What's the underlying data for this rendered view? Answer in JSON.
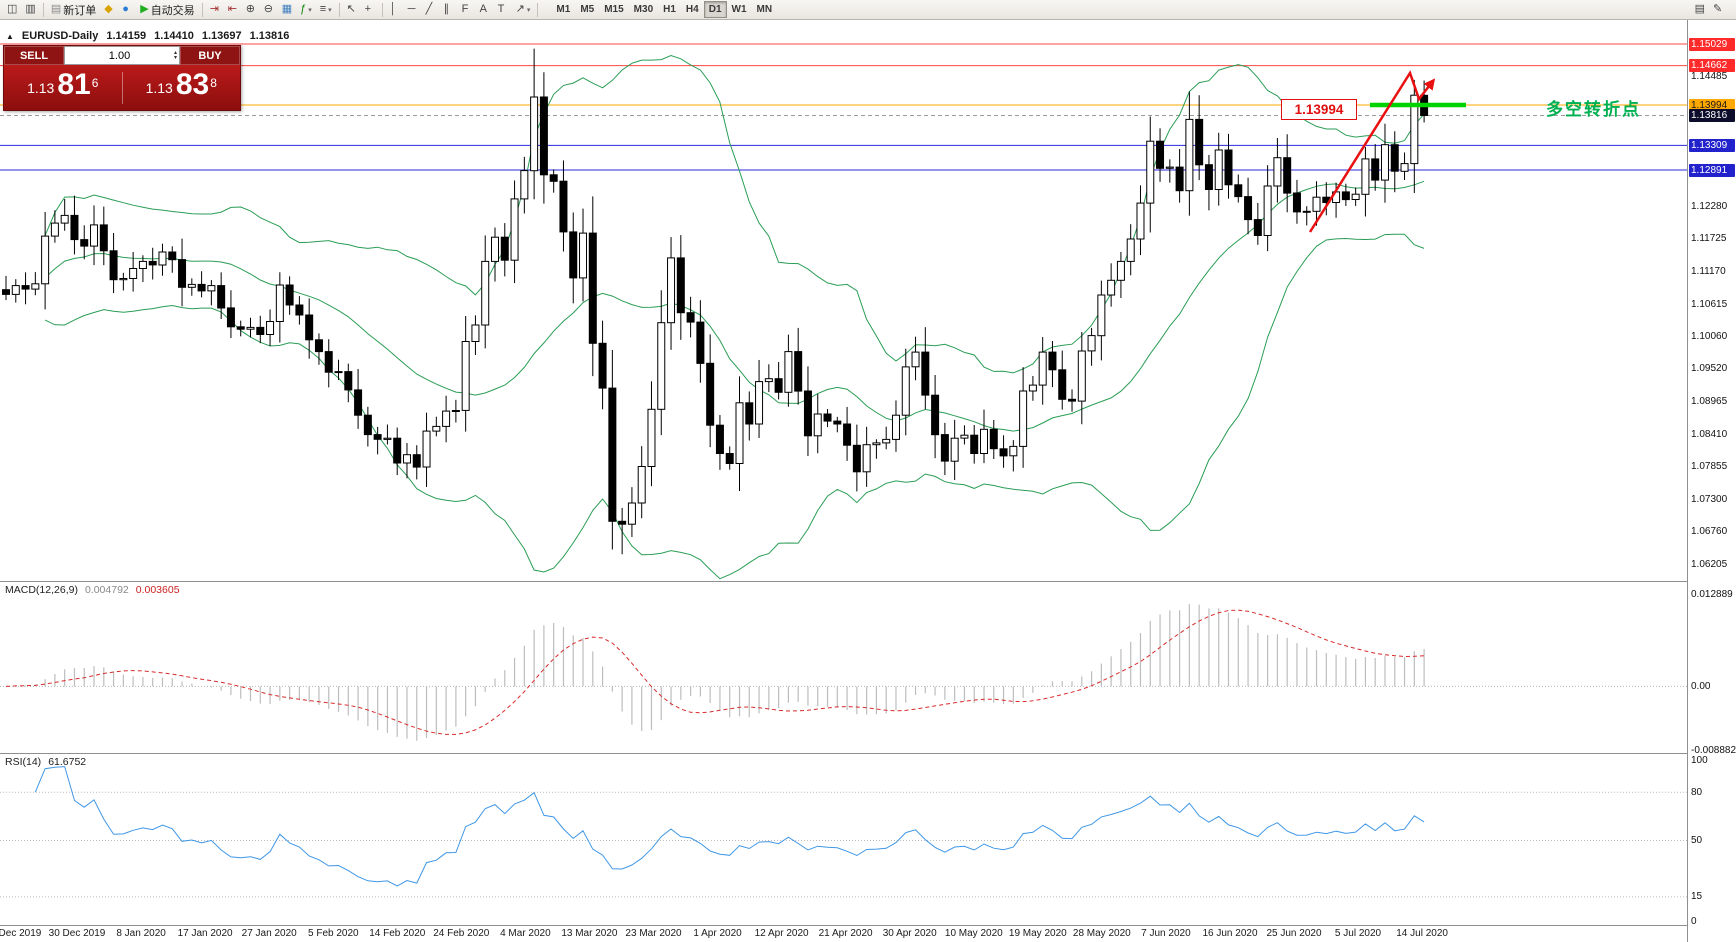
{
  "toolbar": {
    "buttons": [
      {
        "name": "charts-window-icon",
        "glyph": "◫"
      },
      {
        "name": "profiles-icon",
        "glyph": "▥"
      },
      {
        "sep": true
      },
      {
        "name": "new-order-button",
        "glyph": "▤",
        "label": "新订单",
        "color": "#8a8a8a"
      },
      {
        "name": "gold-icon",
        "glyph": "◆",
        "color": "#d9a400"
      },
      {
        "name": "community-icon",
        "glyph": "●",
        "color": "#2a7fd4"
      },
      {
        "name": "auto-trading-button",
        "glyph": "▶",
        "label": "自动交易",
        "color": "#1fae1f"
      },
      {
        "sep": true
      },
      {
        "name": "autoscroll-icon",
        "glyph": "⇥",
        "color": "#a33333"
      },
      {
        "name": "chart-shift-icon",
        "glyph": "⇤",
        "color": "#a33333"
      },
      {
        "name": "zoom-in-icon",
        "glyph": "⊕"
      },
      {
        "name": "zoom-out-icon",
        "glyph": "⊖"
      },
      {
        "name": "tile-windows-icon",
        "glyph": "▦",
        "color": "#3f7fbf"
      },
      {
        "name": "indicators-icon",
        "glyph": "ƒ",
        "color": "#0c860c",
        "caret": true
      },
      {
        "name": "objects-list-icon",
        "glyph": "≡",
        "caret": true
      },
      {
        "sep": true
      },
      {
        "name": "cursor-icon",
        "glyph": "↖"
      },
      {
        "name": "crosshair-icon",
        "glyph": "+"
      },
      {
        "sep": true
      },
      {
        "name": "vertical-line-icon",
        "glyph": "│"
      },
      {
        "name": "horizontal-line-icon",
        "glyph": "─"
      },
      {
        "name": "trendline-icon",
        "glyph": "╱"
      },
      {
        "name": "channel-icon",
        "glyph": "∥"
      },
      {
        "name": "fibonacci-icon",
        "glyph": "F"
      },
      {
        "name": "text-icon",
        "glyph": "A"
      },
      {
        "name": "label-icon",
        "glyph": "T"
      },
      {
        "name": "arrows-icon",
        "glyph": "↗",
        "caret": true
      },
      {
        "sep": true
      }
    ],
    "right_buttons": [
      {
        "name": "new-window-icon",
        "glyph": "▤"
      },
      {
        "name": "draw-icon",
        "glyph": "✎"
      }
    ],
    "timeframes": [
      "M1",
      "M5",
      "M15",
      "M30",
      "H1",
      "H4",
      "D1",
      "W1",
      "MN"
    ],
    "active_timeframe": "D1"
  },
  "header": {
    "collapse_icon": "▲",
    "symbol": "EURUSD-Daily",
    "open": "1.14159",
    "high": "1.14410",
    "low": "1.13697",
    "close": "1.13816"
  },
  "trade_panel": {
    "sell": "SELL",
    "buy": "BUY",
    "volume": "1.00",
    "spin_up": "▴",
    "spin_down": "▾",
    "sell_small": "1.13",
    "sell_big": "81",
    "sell_sup": "6",
    "buy_small": "1.13",
    "buy_big": "83",
    "buy_sup": "8"
  },
  "levels": [
    {
      "price": 1.15029,
      "label": "1.15029",
      "color": "#ff4444",
      "badge_bg": "#ff2a2a",
      "badge_fg": "#ffffff"
    },
    {
      "price": 1.14662,
      "label": "1.14662",
      "color": "#ff4444",
      "badge_bg": "#ff2a2a",
      "badge_fg": "#ffffff"
    },
    {
      "price": 1.13994,
      "label": "1.13994",
      "color": "#ffa800",
      "badge_bg": "#ffa800",
      "badge_fg": "#1a1a1a"
    },
    {
      "price": 1.13309,
      "label": "1.13309",
      "color": "#2a2ae0",
      "badge_bg": "#2222cc",
      "badge_fg": "#ffffff"
    },
    {
      "price": 1.12891,
      "label": "1.12891",
      "color": "#2a2ae0",
      "badge_bg": "#2222cc",
      "badge_fg": "#ffffff"
    }
  ],
  "current_price": {
    "price": 1.13816,
    "label": "1.13816",
    "badge_bg": "#0d0d2b",
    "badge_fg": "#ffffff"
  },
  "price_scale_ticks": [
    "1.14485",
    "1.12280",
    "1.11725",
    "1.11170",
    "1.10615",
    "1.10060",
    "1.09520",
    "1.08965",
    "1.08410",
    "1.07855",
    "1.07300",
    "1.06760",
    "1.06205"
  ],
  "annotations": {
    "price_flag": "1.13994",
    "flag_color": "#e01010",
    "note": "多空转折点",
    "note_color": "#00b050",
    "segment_color": "#00d300",
    "arrow_color": "#e81010"
  },
  "macd_panel": {
    "name": "MACD(12,26,9)",
    "main_value": "0.004792",
    "signal_value": "0.003605",
    "scale_top": "0.012889",
    "scale_zero": "0.00",
    "scale_bottom": "-0.008882"
  },
  "rsi_panel": {
    "name": "RSI(14)",
    "value": "61.6752",
    "scale": [
      "100",
      "80",
      "50",
      "15",
      "0"
    ],
    "levels": [
      80,
      50,
      15
    ]
  },
  "date_labels": [
    "20 Dec 2019",
    "30 Dec 2019",
    "8 Jan 2020",
    "17 Jan 2020",
    "27 Jan 2020",
    "5 Feb 2020",
    "14 Feb 2020",
    "24 Feb 2020",
    "4 Mar 2020",
    "13 Mar 2020",
    "23 Mar 2020",
    "1 Apr 2020",
    "12 Apr 2020",
    "21 Apr 2020",
    "30 Apr 2020",
    "10 May 2020",
    "19 May 2020",
    "28 May 2020",
    "7 Jun 2020",
    "16 Jun 2020",
    "25 Jun 2020",
    "5 Jul 2020",
    "14 Jul 2020"
  ],
  "chart_data": {
    "type": "candlestick",
    "title": "EURUSD Daily",
    "ylim": [
      1.06205,
      1.15029
    ],
    "x_labels": [
      "20 Dec 2019",
      "30 Dec 2019",
      "8 Jan 2020",
      "17 Jan 2020",
      "27 Jan 2020",
      "5 Feb 2020",
      "14 Feb 2020",
      "24 Feb 2020",
      "4 Mar 2020",
      "13 Mar 2020",
      "23 Mar 2020",
      "1 Apr 2020",
      "12 Apr 2020",
      "21 Apr 2020",
      "30 Apr 2020",
      "10 May 2020",
      "19 May 2020",
      "28 May 2020",
      "7 Jun 2020",
      "16 Jun 2020",
      "25 Jun 2020",
      "5 Jul 2020",
      "14 Jul 2020"
    ],
    "closes": [
      1.1078,
      1.1093,
      1.1087,
      1.1096,
      1.1177,
      1.1199,
      1.1212,
      1.1171,
      1.116,
      1.1196,
      1.1152,
      1.1103,
      1.1105,
      1.1122,
      1.1134,
      1.1128,
      1.115,
      1.1137,
      1.109,
      1.1095,
      1.1084,
      1.1093,
      1.1055,
      1.1023,
      1.1019,
      1.1022,
      1.101,
      1.1032,
      1.1094,
      1.106,
      1.1043,
      1.1001,
      1.0981,
      1.0946,
      1.0947,
      1.0916,
      1.0873,
      1.084,
      1.0832,
      1.0834,
      1.0792,
      1.0806,
      1.0785,
      1.0846,
      1.0854,
      1.088,
      1.0881,
      1.0998,
      1.1026,
      1.1134,
      1.1175,
      1.1136,
      1.124,
      1.1288,
      1.1413,
      1.1281,
      1.127,
      1.1184,
      1.1106,
      1.1182,
      1.0995,
      1.0919,
      1.0693,
      1.0688,
      1.0724,
      1.0786,
      1.0883,
      1.103,
      1.114,
      1.1047,
      1.1031,
      1.0961,
      1.0856,
      1.0808,
      1.0791,
      1.0894,
      1.0858,
      1.093,
      1.0935,
      1.0912,
      1.0981,
      1.0914,
      1.0838,
      1.0875,
      1.0863,
      1.0858,
      1.0822,
      1.0777,
      1.0823,
      1.0826,
      1.0832,
      1.0873,
      1.0955,
      1.098,
      1.0907,
      1.084,
      1.0795,
      1.0834,
      1.0839,
      1.0808,
      1.0849,
      1.0816,
      1.0804,
      1.082,
      1.0914,
      1.0924,
      1.098,
      1.095,
      1.09,
      1.0897,
      1.0982,
      1.1008,
      1.1077,
      1.1102,
      1.1134,
      1.1172,
      1.1233,
      1.1338,
      1.1292,
      1.1294,
      1.1254,
      1.1375,
      1.1298,
      1.1256,
      1.1323,
      1.1264,
      1.1244,
      1.1205,
      1.1178,
      1.1262,
      1.131,
      1.125,
      1.1218,
      1.1219,
      1.1243,
      1.1234,
      1.1252,
      1.1239,
      1.1248,
      1.1308,
      1.1272,
      1.1332,
      1.1287,
      1.13,
      1.1416,
      1.13816
    ],
    "last_candle_ohlc": [
      1.14159,
      1.1441,
      1.13697,
      1.13816
    ],
    "overrides": {
      "54": {
        "h": 1.1495
      },
      "62": {
        "l": 1.0645
      },
      "63": {
        "l": 1.0637
      },
      "121": {
        "h": 1.1422
      },
      "144": {
        "h": 1.1442
      }
    },
    "levels": [
      1.15029,
      1.14662,
      1.13994,
      1.13309,
      1.12891
    ],
    "indicators": {
      "bollinger_period": 20,
      "bollinger_deviation": 2,
      "bollinger_color": "#2a9d55",
      "macd_fast": 12,
      "macd_slow": 26,
      "macd_signal": 9,
      "macd_hist_color": "#bdbdbd",
      "macd_signal_color": "#d92b2b",
      "rsi_period": 14,
      "rsi_color": "#3f97e6"
    },
    "macd_ylim": [
      -0.008882,
      0.012889
    ],
    "rsi_ylim": [
      0,
      100
    ]
  }
}
